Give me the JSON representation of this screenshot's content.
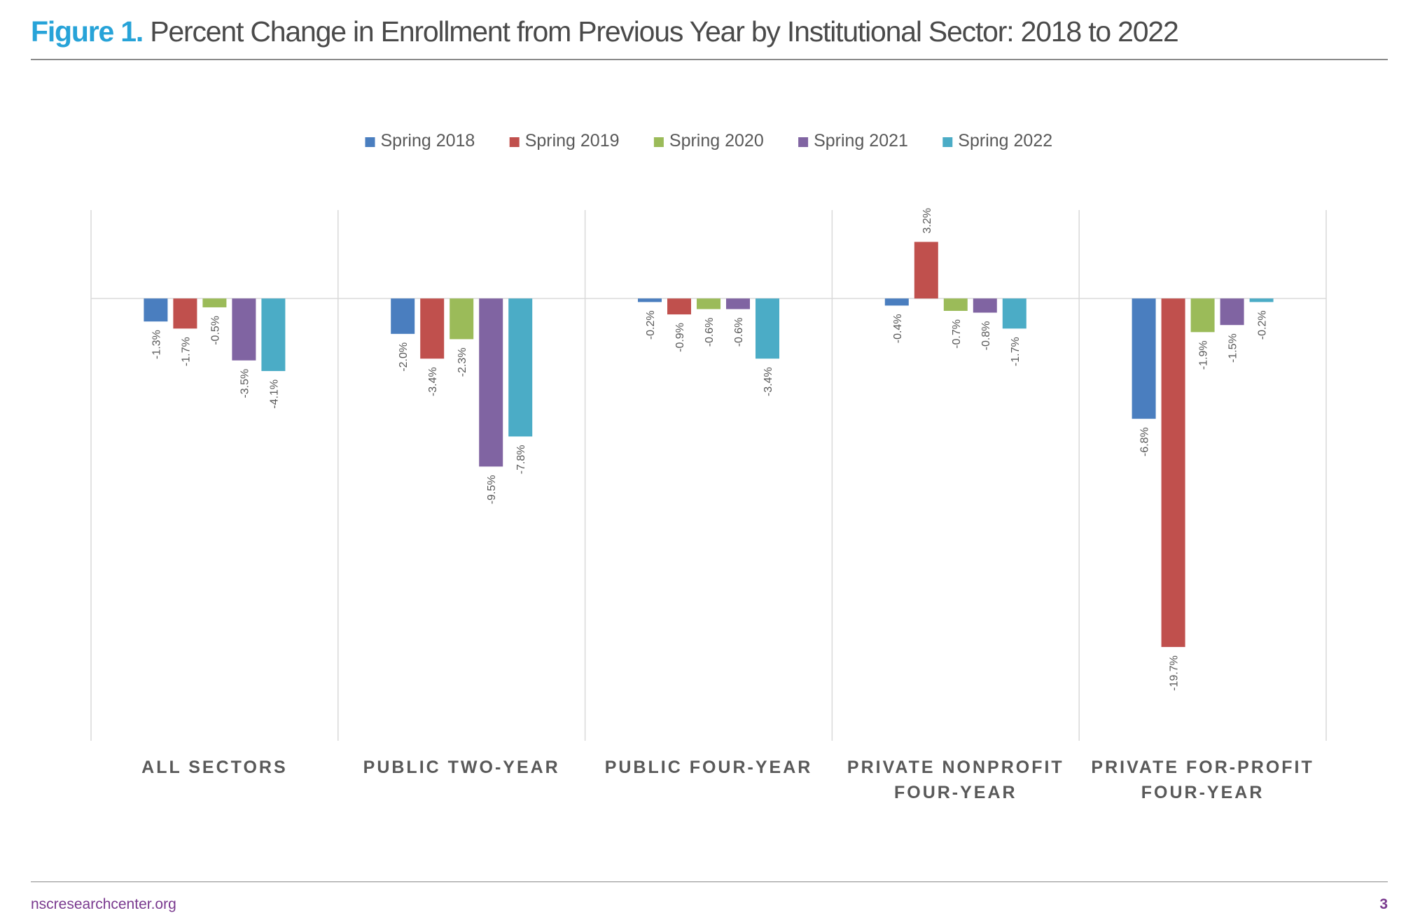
{
  "header": {
    "figure_label": "Figure 1.",
    "title": "Percent Change in Enrollment from Previous Year by Institutional Sector: 2018 to 2022"
  },
  "chart_data": {
    "type": "bar",
    "categories": [
      [
        "ALL SECTORS"
      ],
      [
        "PUBLIC TWO-YEAR"
      ],
      [
        "PUBLIC FOUR-YEAR"
      ],
      [
        "PRIVATE NONPROFIT",
        "FOUR-YEAR"
      ],
      [
        "PRIVATE FOR-PROFIT",
        "FOUR-YEAR"
      ]
    ],
    "series": [
      {
        "name": "Spring 2018",
        "color": "#4a7ebf",
        "values": [
          -1.3,
          -2.0,
          -0.2,
          -0.4,
          -6.8
        ],
        "labels": [
          "-1.3%",
          "-2.0%",
          "-0.2%",
          "-0.4%",
          "-6.8%"
        ]
      },
      {
        "name": "Spring 2019",
        "color": "#c0504d",
        "values": [
          -1.7,
          -3.4,
          -0.9,
          3.2,
          -19.7
        ],
        "labels": [
          "-1.7%",
          "-3.4%",
          "-0.9%",
          "3.2%",
          "-19.7%"
        ]
      },
      {
        "name": "Spring 2020",
        "color": "#9bbb59",
        "values": [
          -0.5,
          -2.3,
          -0.6,
          -0.7,
          -1.9
        ],
        "labels": [
          "-0.5%",
          "-2.3%",
          "-0.6%",
          "-0.7%",
          "-1.9%"
        ]
      },
      {
        "name": "Spring 2021",
        "color": "#8064a2",
        "values": [
          -3.5,
          -9.5,
          -0.6,
          -0.8,
          -1.5
        ],
        "labels": [
          "-3.5%",
          "-9.5%",
          "-0.6%",
          "-0.8%",
          "-1.5%"
        ]
      },
      {
        "name": "Spring 2022",
        "color": "#4bacc6",
        "values": [
          -4.1,
          -7.8,
          -3.4,
          -1.7,
          -0.2
        ],
        "labels": [
          "-4.1%",
          "-7.8%",
          "-3.4%",
          "-1.7%",
          "-0.2%"
        ]
      }
    ],
    "ylim": [
      -25,
      5
    ],
    "legend_position": "top-center",
    "grid": false,
    "data_label_orientation": "vertical"
  },
  "footer": {
    "url": "nscresearchcenter.org",
    "page_number": "3"
  }
}
